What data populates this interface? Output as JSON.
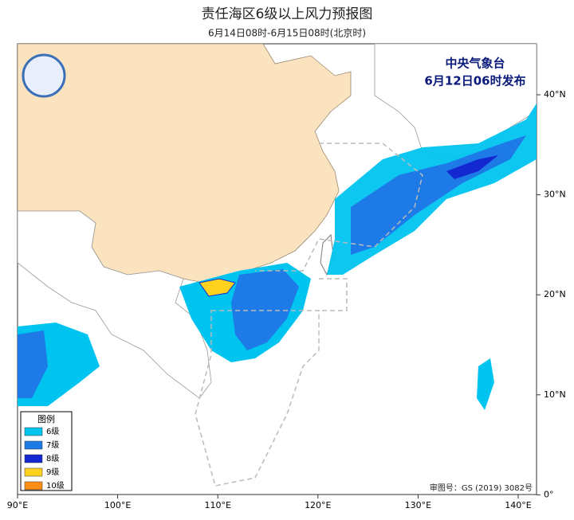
{
  "header": {
    "title": "责任海区6级以上风力预报图",
    "subtitle": "6月14日08时-6月15日08时(北京时)"
  },
  "issuer": {
    "agency": "中央气象台",
    "issued": "6月12日06时发布"
  },
  "legend": {
    "title": "图例",
    "items": [
      {
        "label": "6级",
        "color": "#00c4f0"
      },
      {
        "label": "7级",
        "color": "#1e7ae6"
      },
      {
        "label": "8级",
        "color": "#1428d2"
      },
      {
        "label": "9级",
        "color": "#ffd21e"
      },
      {
        "label": "10级",
        "color": "#ff8c14"
      }
    ]
  },
  "axes": {
    "lon_labels": [
      "90°E",
      "100°E",
      "110°E",
      "120°E",
      "130°E",
      "140°E"
    ],
    "lat_labels": [
      "40°N",
      "30°N",
      "20°N",
      "10°N",
      "0°"
    ]
  },
  "footer": {
    "review_number": "审图号：GS (2019) 3082号"
  }
}
